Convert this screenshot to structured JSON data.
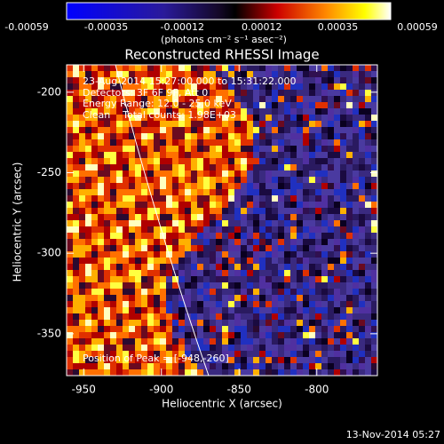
{
  "chart_data": {
    "type": "image",
    "title": "Reconstructed RHESSI Image",
    "colorbar": {
      "label": "(photons cm⁻² s⁻¹ asec⁻²)",
      "lim": [
        -0.00059,
        0.00059
      ],
      "ticks": [
        -0.00059,
        -0.00035,
        -0.00012,
        0.00012,
        0.00035,
        0.00059
      ]
    },
    "x_label": "Heliocentric X (arcsec)",
    "y_label": "Heliocentric Y (arcsec)",
    "xlim": [
      -961,
      -761
    ],
    "xticks": [
      -950,
      -900,
      -850,
      -800
    ],
    "ylim": [
      -376,
      -183
    ],
    "yticks": [
      -200,
      -250,
      -300,
      -350
    ],
    "annotations": [
      "23-Aug-2014 15:27:00.000 to 15:31:22.000",
      "Detectors: 3F 6F 9F, Att 0",
      "Energy Range: 12.0 - 25.0 keV",
      "Clean    Total counts: 1.98E+03"
    ],
    "peak_note": "Position of Peak = [-948,-260]",
    "footer": "13-Nov-2014 05:27"
  }
}
